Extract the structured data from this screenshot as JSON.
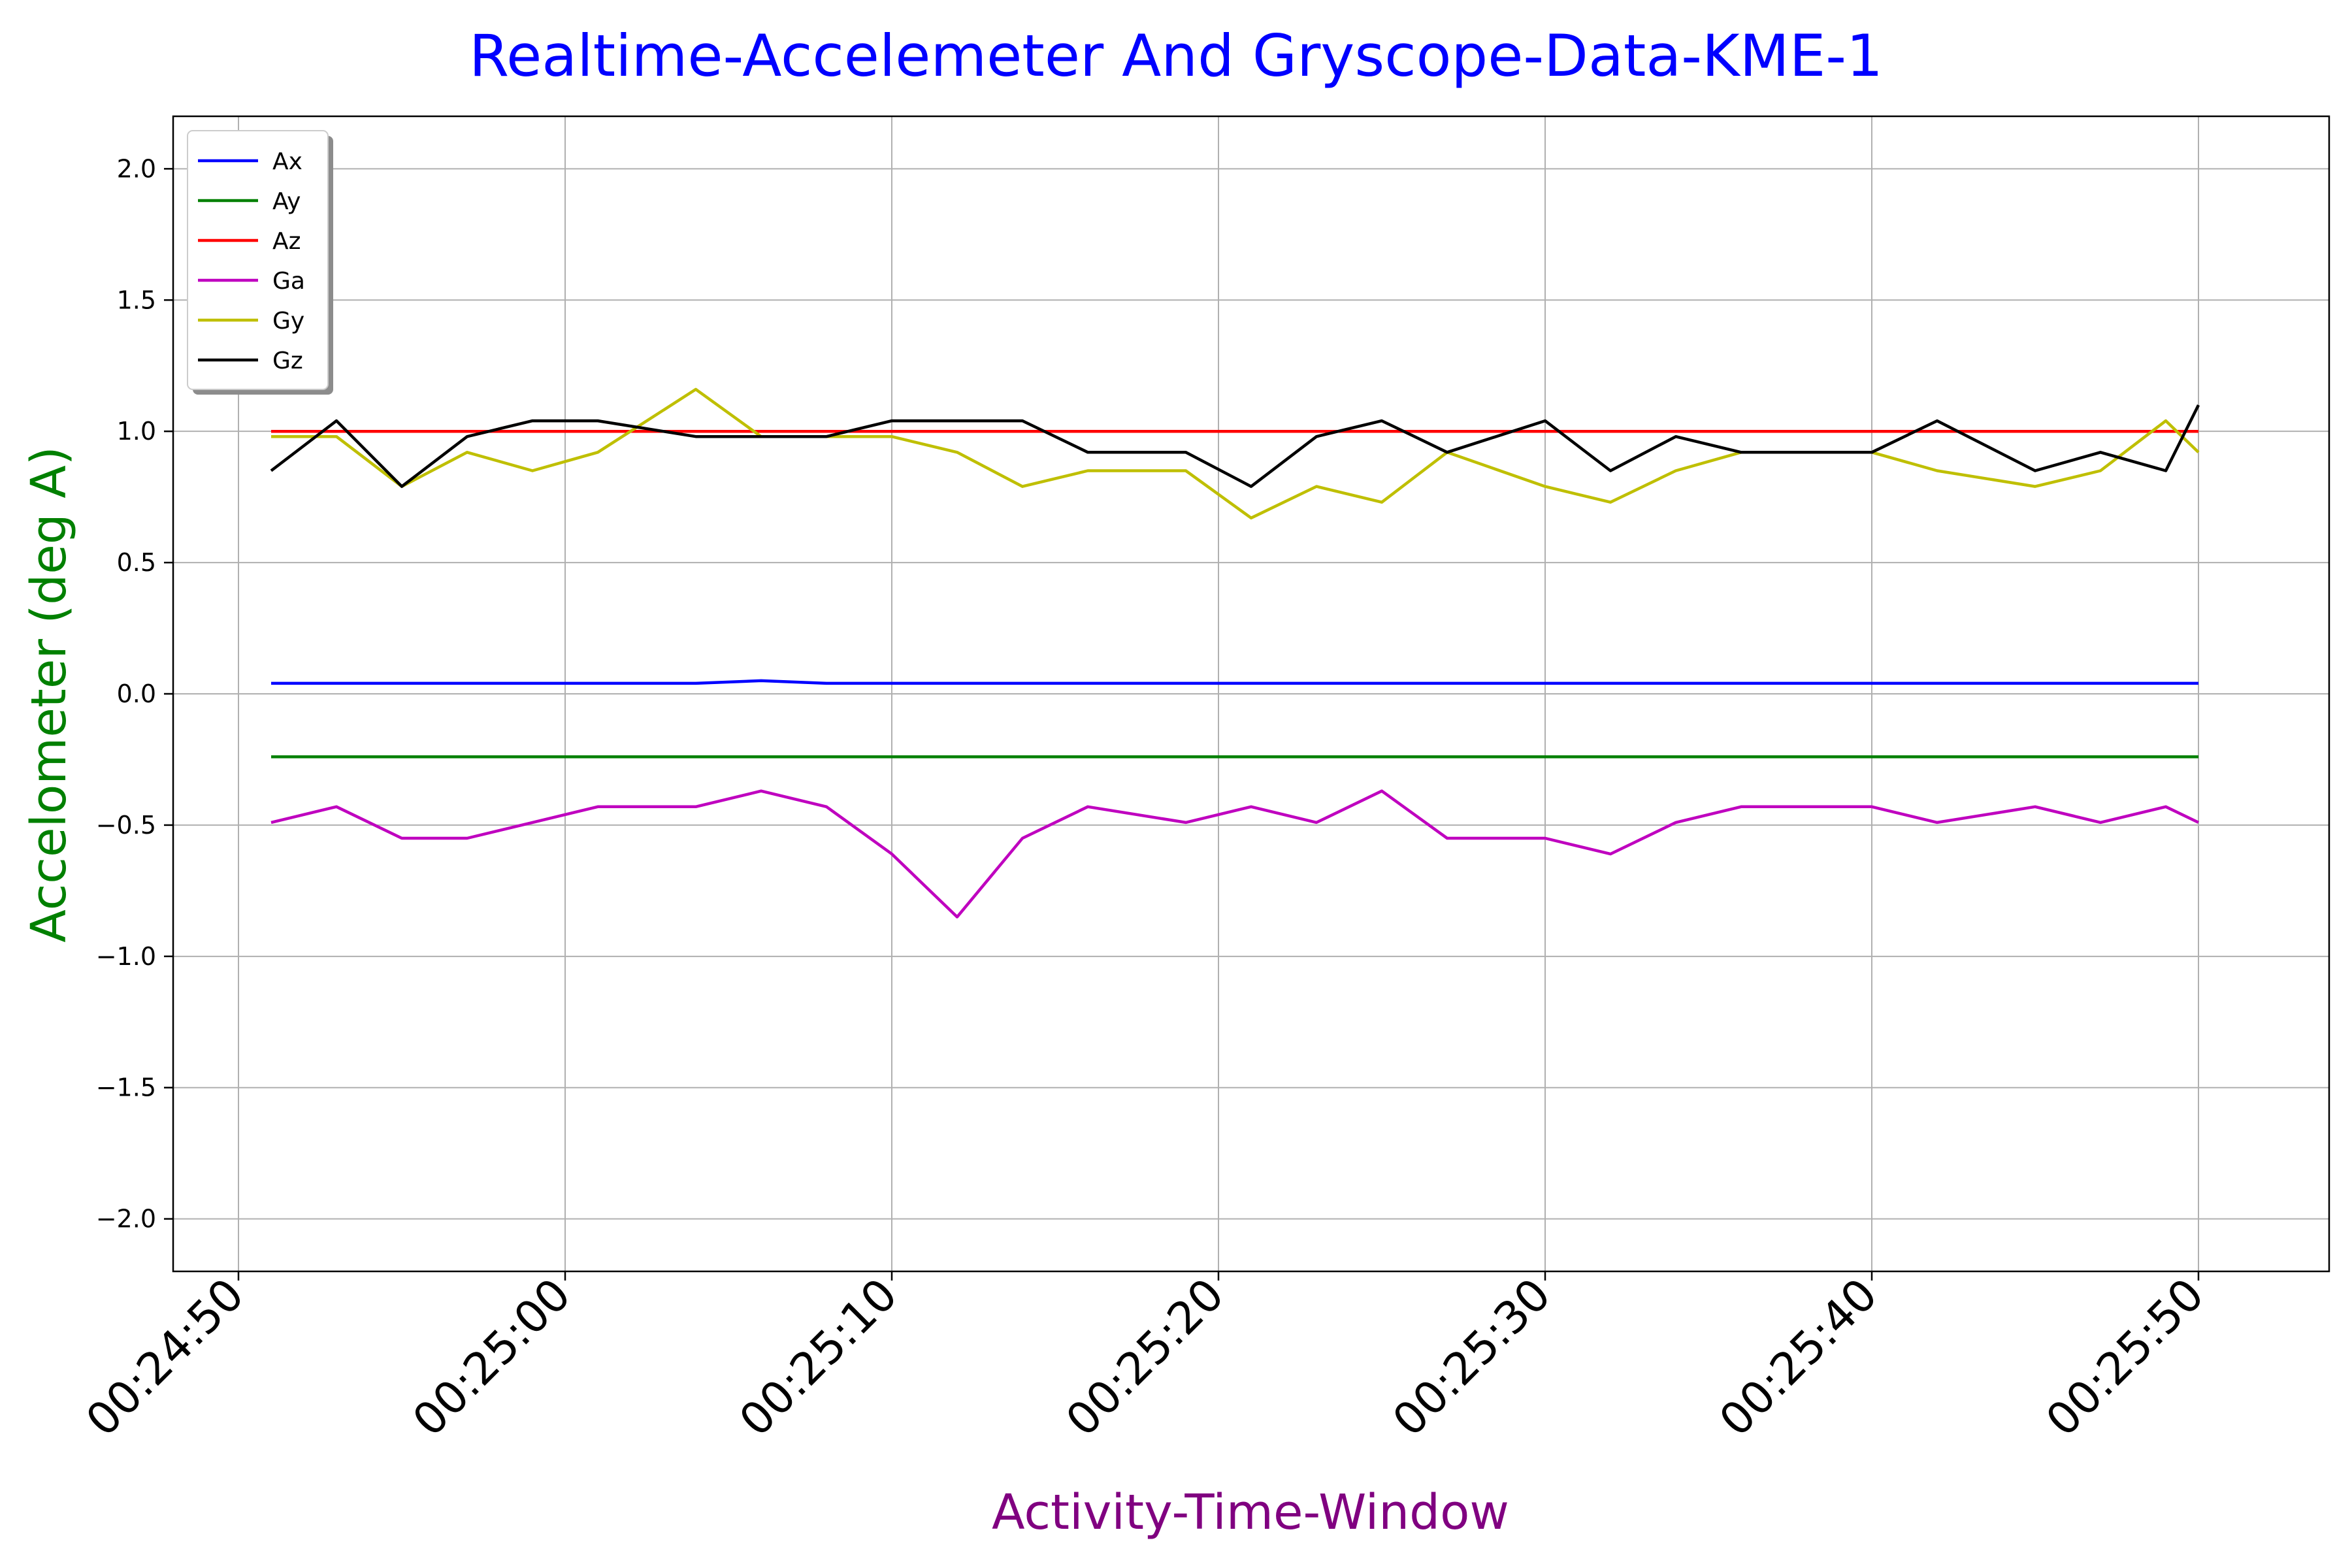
{
  "chart_data": {
    "type": "line",
    "title": "Realtime-Accelemeter And Gryscope-Data-KME-1",
    "xlabel": "Activity-Time-Window",
    "ylabel": "Accelometer (deg A)",
    "title_color": "#0000ff",
    "xlabel_color": "#800080",
    "ylabel_color": "#008000",
    "ylim": [
      -2.2,
      2.2
    ],
    "yticks": [
      -2.0,
      -1.5,
      -1.0,
      -0.5,
      0.0,
      0.5,
      1.0,
      1.5,
      2.0
    ],
    "ytick_labels": [
      "−2.0",
      "−1.5",
      "−1.0",
      "−0.5",
      "0.0",
      "0.5",
      "1.0",
      "1.5",
      "2.0"
    ],
    "xlim": [
      "00:24:48",
      "00:25:54"
    ],
    "xtick_labels": [
      "00:24:50",
      "00:25:00",
      "00:25:10",
      "00:25:20",
      "00:25:30",
      "00:25:40",
      "00:25:50"
    ],
    "grid": true,
    "legend_position": "top-left",
    "x": [
      "00:24:51",
      "00:24:53",
      "00:24:55",
      "00:24:57",
      "00:24:59",
      "00:25:01",
      "00:25:04",
      "00:25:06",
      "00:25:08",
      "00:25:10",
      "00:25:12",
      "00:25:14",
      "00:25:16",
      "00:25:19",
      "00:25:21",
      "00:25:23",
      "00:25:25",
      "00:25:27",
      "00:25:30",
      "00:25:32",
      "00:25:34",
      "00:25:36",
      "00:25:38",
      "00:25:40",
      "00:25:42",
      "00:25:45",
      "00:25:47",
      "00:25:49",
      "00:25:50"
    ],
    "series": [
      {
        "name": "Ax",
        "color": "#0000ff",
        "values": [
          0.04,
          0.04,
          0.04,
          0.04,
          0.04,
          0.04,
          0.04,
          0.05,
          0.04,
          0.04,
          0.04,
          0.04,
          0.04,
          0.04,
          0.04,
          0.04,
          0.04,
          0.04,
          0.04,
          0.04,
          0.04,
          0.04,
          0.04,
          0.04,
          0.04,
          0.04,
          0.04,
          0.04,
          0.04
        ]
      },
      {
        "name": "Ay",
        "color": "#008000",
        "values": [
          -0.24,
          -0.24,
          -0.24,
          -0.24,
          -0.24,
          -0.24,
          -0.24,
          -0.24,
          -0.24,
          -0.24,
          -0.24,
          -0.24,
          -0.24,
          -0.24,
          -0.24,
          -0.24,
          -0.24,
          -0.24,
          -0.24,
          -0.24,
          -0.24,
          -0.24,
          -0.24,
          -0.24,
          -0.24,
          -0.24,
          -0.24,
          -0.24,
          -0.24
        ]
      },
      {
        "name": "Az",
        "color": "#ff0000",
        "values": [
          1.0,
          1.0,
          1.0,
          1.0,
          1.0,
          1.0,
          1.0,
          1.0,
          1.0,
          1.0,
          1.0,
          1.0,
          1.0,
          1.0,
          1.0,
          1.0,
          1.0,
          1.0,
          1.0,
          1.0,
          1.0,
          1.0,
          1.0,
          1.0,
          1.0,
          1.0,
          1.0,
          1.0,
          1.0
        ]
      },
      {
        "name": "Ga",
        "color": "#bf00bf",
        "values": [
          -0.49,
          -0.43,
          -0.55,
          -0.55,
          -0.49,
          -0.43,
          -0.43,
          -0.37,
          -0.43,
          -0.61,
          -0.85,
          -0.55,
          -0.43,
          -0.49,
          -0.43,
          -0.49,
          -0.37,
          -0.55,
          -0.55,
          -0.61,
          -0.49,
          -0.43,
          -0.43,
          -0.43,
          -0.49,
          -0.43,
          -0.49,
          -0.43,
          -0.49
        ]
      },
      {
        "name": "Gy",
        "color": "#bfbf00",
        "values": [
          0.98,
          0.98,
          0.79,
          0.92,
          0.85,
          0.92,
          1.16,
          0.98,
          0.98,
          0.98,
          0.92,
          0.79,
          0.85,
          0.85,
          0.67,
          0.79,
          0.73,
          0.92,
          0.79,
          0.73,
          0.85,
          0.92,
          0.92,
          0.92,
          0.85,
          0.79,
          0.85,
          1.04,
          0.92
        ]
      },
      {
        "name": "Gz",
        "color": "#000000",
        "values": [
          0.85,
          1.04,
          0.79,
          0.98,
          1.04,
          1.04,
          0.98,
          0.98,
          0.98,
          1.04,
          1.04,
          1.04,
          0.92,
          0.92,
          0.79,
          0.98,
          1.04,
          0.92,
          1.04,
          0.85,
          0.98,
          0.92,
          0.92,
          0.92,
          1.04,
          0.85,
          0.92,
          0.85,
          1.1
        ]
      }
    ]
  }
}
